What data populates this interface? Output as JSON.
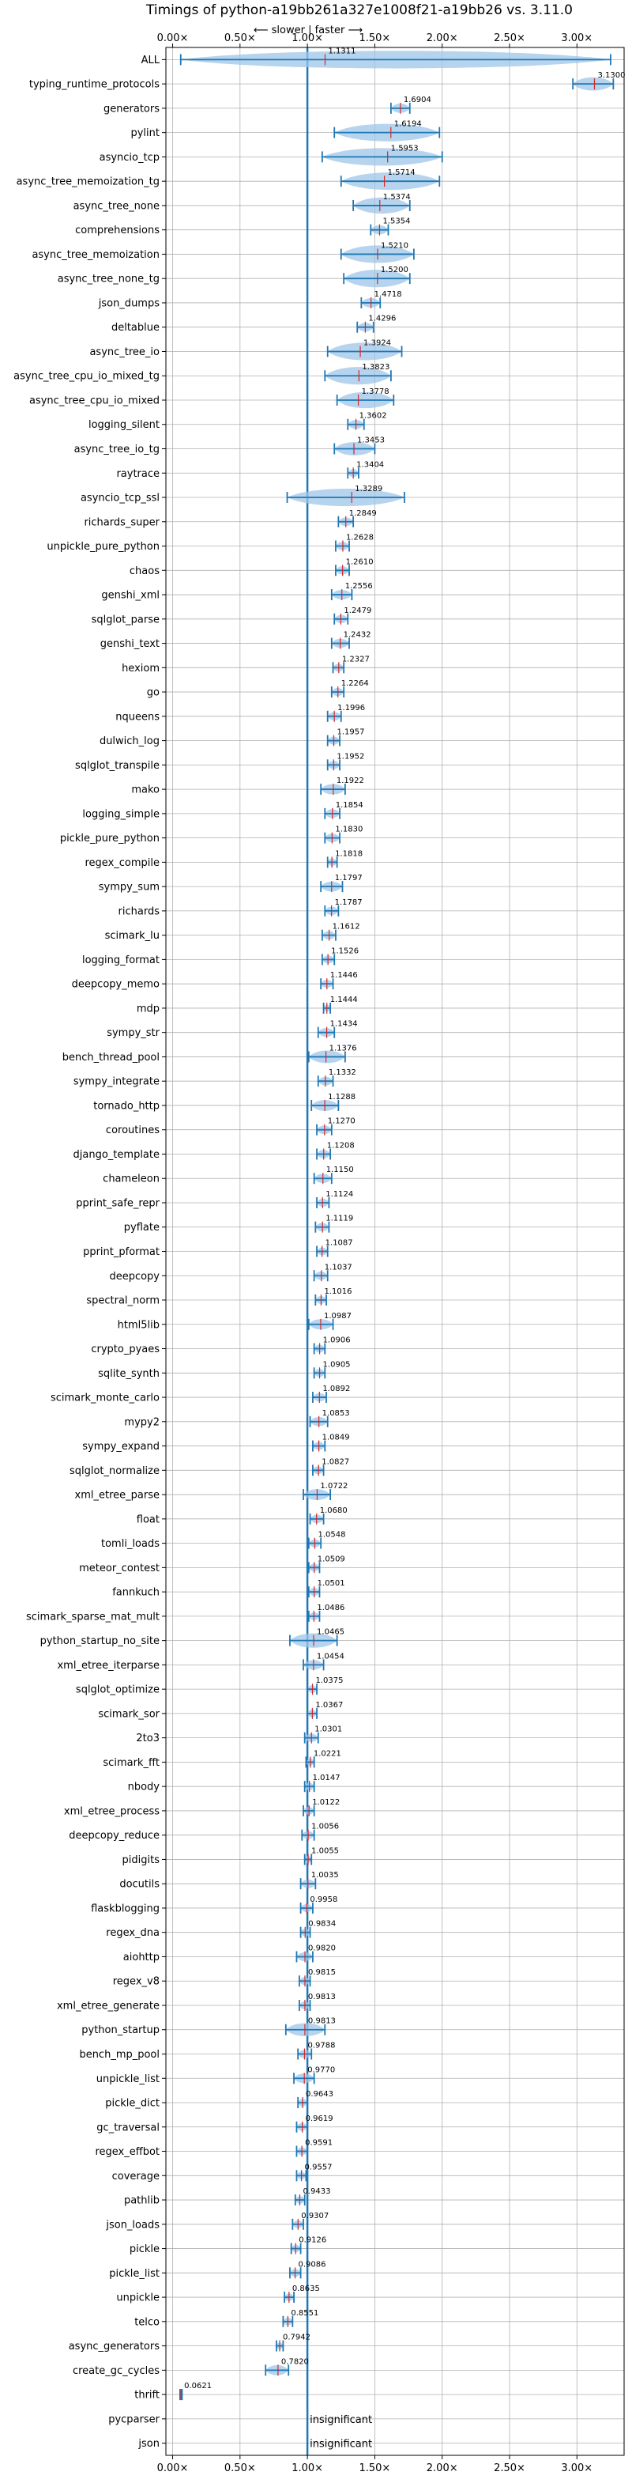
{
  "chart_data": {
    "type": "violin",
    "title": "Timings of python-a19bb261a327e1008f21-a19bb26 vs. 3.11.0",
    "subtitle": "⟵ slower | faster ⟶",
    "x_ticks": [
      "0.00×",
      "0.50×",
      "1.00×",
      "1.50×",
      "2.00×",
      "2.50×",
      "3.00×"
    ],
    "xlim": [
      -0.05,
      3.35
    ],
    "reference_line": 1.0,
    "grid": true,
    "colors": {
      "violin": "#9ec6e8",
      "line": "#1f77b4",
      "mean": "#d62728",
      "ref": "#1f77b4"
    },
    "insignificant_label": "insignificant",
    "benchmarks": [
      {
        "name": "ALL",
        "value": 1.1311,
        "label": "1.1311",
        "lo": 0.06,
        "hi": 3.25
      },
      {
        "name": "typing_runtime_protocols",
        "value": 3.13,
        "label": "3.1300",
        "lo": 2.97,
        "hi": 3.27
      },
      {
        "name": "generators",
        "value": 1.6904,
        "label": "1.6904",
        "lo": 1.62,
        "hi": 1.76
      },
      {
        "name": "pylint",
        "value": 1.6194,
        "label": "1.6194",
        "lo": 1.2,
        "hi": 1.98
      },
      {
        "name": "asyncio_tcp",
        "value": 1.5953,
        "label": "1.5953",
        "lo": 1.11,
        "hi": 2.0
      },
      {
        "name": "async_tree_memoization_tg",
        "value": 1.5714,
        "label": "1.5714",
        "lo": 1.25,
        "hi": 1.98
      },
      {
        "name": "async_tree_none",
        "value": 1.5374,
        "label": "1.5374",
        "lo": 1.34,
        "hi": 1.76
      },
      {
        "name": "comprehensions",
        "value": 1.5354,
        "label": "1.5354",
        "lo": 1.47,
        "hi": 1.6
      },
      {
        "name": "async_tree_memoization",
        "value": 1.521,
        "label": "1.5210",
        "lo": 1.25,
        "hi": 1.79
      },
      {
        "name": "async_tree_none_tg",
        "value": 1.52,
        "label": "1.5200",
        "lo": 1.27,
        "hi": 1.76
      },
      {
        "name": "json_dumps",
        "value": 1.4718,
        "label": "1.4718",
        "lo": 1.4,
        "hi": 1.54
      },
      {
        "name": "deltablue",
        "value": 1.4296,
        "label": "1.4296",
        "lo": 1.37,
        "hi": 1.49
      },
      {
        "name": "async_tree_io",
        "value": 1.3924,
        "label": "1.3924",
        "lo": 1.15,
        "hi": 1.7
      },
      {
        "name": "async_tree_cpu_io_mixed_tg",
        "value": 1.3823,
        "label": "1.3823",
        "lo": 1.13,
        "hi": 1.62
      },
      {
        "name": "async_tree_cpu_io_mixed",
        "value": 1.3778,
        "label": "1.3778",
        "lo": 1.22,
        "hi": 1.64
      },
      {
        "name": "logging_silent",
        "value": 1.3602,
        "label": "1.3602",
        "lo": 1.3,
        "hi": 1.42
      },
      {
        "name": "async_tree_io_tg",
        "value": 1.3453,
        "label": "1.3453",
        "lo": 1.2,
        "hi": 1.5
      },
      {
        "name": "raytrace",
        "value": 1.3404,
        "label": "1.3404",
        "lo": 1.3,
        "hi": 1.38
      },
      {
        "name": "asyncio_tcp_ssl",
        "value": 1.3289,
        "label": "1.3289",
        "lo": 0.85,
        "hi": 1.72
      },
      {
        "name": "richards_super",
        "value": 1.2849,
        "label": "1.2849",
        "lo": 1.23,
        "hi": 1.34
      },
      {
        "name": "unpickle_pure_python",
        "value": 1.2628,
        "label": "1.2628",
        "lo": 1.21,
        "hi": 1.31
      },
      {
        "name": "chaos",
        "value": 1.261,
        "label": "1.2610",
        "lo": 1.21,
        "hi": 1.31
      },
      {
        "name": "genshi_xml",
        "value": 1.2556,
        "label": "1.2556",
        "lo": 1.18,
        "hi": 1.33
      },
      {
        "name": "sqlglot_parse",
        "value": 1.2479,
        "label": "1.2479",
        "lo": 1.2,
        "hi": 1.3
      },
      {
        "name": "genshi_text",
        "value": 1.2432,
        "label": "1.2432",
        "lo": 1.18,
        "hi": 1.31
      },
      {
        "name": "hexiom",
        "value": 1.2327,
        "label": "1.2327",
        "lo": 1.19,
        "hi": 1.27
      },
      {
        "name": "go",
        "value": 1.2264,
        "label": "1.2264",
        "lo": 1.18,
        "hi": 1.27
      },
      {
        "name": "nqueens",
        "value": 1.1996,
        "label": "1.1996",
        "lo": 1.15,
        "hi": 1.25
      },
      {
        "name": "dulwich_log",
        "value": 1.1957,
        "label": "1.1957",
        "lo": 1.15,
        "hi": 1.24
      },
      {
        "name": "sqlglot_transpile",
        "value": 1.1952,
        "label": "1.1952",
        "lo": 1.15,
        "hi": 1.24
      },
      {
        "name": "mako",
        "value": 1.1922,
        "label": "1.1922",
        "lo": 1.1,
        "hi": 1.28
      },
      {
        "name": "logging_simple",
        "value": 1.1854,
        "label": "1.1854",
        "lo": 1.13,
        "hi": 1.24
      },
      {
        "name": "pickle_pure_python",
        "value": 1.183,
        "label": "1.1830",
        "lo": 1.13,
        "hi": 1.24
      },
      {
        "name": "regex_compile",
        "value": 1.1818,
        "label": "1.1818",
        "lo": 1.15,
        "hi": 1.22
      },
      {
        "name": "sympy_sum",
        "value": 1.1797,
        "label": "1.1797",
        "lo": 1.1,
        "hi": 1.26
      },
      {
        "name": "richards",
        "value": 1.1787,
        "label": "1.1787",
        "lo": 1.13,
        "hi": 1.23
      },
      {
        "name": "scimark_lu",
        "value": 1.1612,
        "label": "1.1612",
        "lo": 1.11,
        "hi": 1.21
      },
      {
        "name": "logging_format",
        "value": 1.1526,
        "label": "1.1526",
        "lo": 1.11,
        "hi": 1.2
      },
      {
        "name": "deepcopy_memo",
        "value": 1.1446,
        "label": "1.1446",
        "lo": 1.1,
        "hi": 1.19
      },
      {
        "name": "mdp",
        "value": 1.1444,
        "label": "1.1444",
        "lo": 1.12,
        "hi": 1.17
      },
      {
        "name": "sympy_str",
        "value": 1.1434,
        "label": "1.1434",
        "lo": 1.08,
        "hi": 1.2
      },
      {
        "name": "bench_thread_pool",
        "value": 1.1376,
        "label": "1.1376",
        "lo": 1.01,
        "hi": 1.28
      },
      {
        "name": "sympy_integrate",
        "value": 1.1332,
        "label": "1.1332",
        "lo": 1.08,
        "hi": 1.19
      },
      {
        "name": "tornado_http",
        "value": 1.1288,
        "label": "1.1288",
        "lo": 1.03,
        "hi": 1.23
      },
      {
        "name": "coroutines",
        "value": 1.127,
        "label": "1.1270",
        "lo": 1.07,
        "hi": 1.18
      },
      {
        "name": "django_template",
        "value": 1.1208,
        "label": "1.1208",
        "lo": 1.07,
        "hi": 1.17
      },
      {
        "name": "chameleon",
        "value": 1.115,
        "label": "1.1150",
        "lo": 1.05,
        "hi": 1.18
      },
      {
        "name": "pprint_safe_repr",
        "value": 1.1124,
        "label": "1.1124",
        "lo": 1.07,
        "hi": 1.16
      },
      {
        "name": "pyflate",
        "value": 1.1119,
        "label": "1.1119",
        "lo": 1.06,
        "hi": 1.16
      },
      {
        "name": "pprint_pformat",
        "value": 1.1087,
        "label": "1.1087",
        "lo": 1.07,
        "hi": 1.15
      },
      {
        "name": "deepcopy",
        "value": 1.1037,
        "label": "1.1037",
        "lo": 1.05,
        "hi": 1.15
      },
      {
        "name": "spectral_norm",
        "value": 1.1016,
        "label": "1.1016",
        "lo": 1.06,
        "hi": 1.14
      },
      {
        "name": "html5lib",
        "value": 1.0987,
        "label": "1.0987",
        "lo": 1.01,
        "hi": 1.19
      },
      {
        "name": "crypto_pyaes",
        "value": 1.0906,
        "label": "1.0906",
        "lo": 1.05,
        "hi": 1.13
      },
      {
        "name": "sqlite_synth",
        "value": 1.0905,
        "label": "1.0905",
        "lo": 1.05,
        "hi": 1.13
      },
      {
        "name": "scimark_monte_carlo",
        "value": 1.0892,
        "label": "1.0892",
        "lo": 1.04,
        "hi": 1.14
      },
      {
        "name": "mypy2",
        "value": 1.0853,
        "label": "1.0853",
        "lo": 1.02,
        "hi": 1.15
      },
      {
        "name": "sympy_expand",
        "value": 1.0849,
        "label": "1.0849",
        "lo": 1.04,
        "hi": 1.13
      },
      {
        "name": "sqlglot_normalize",
        "value": 1.0827,
        "label": "1.0827",
        "lo": 1.04,
        "hi": 1.12
      },
      {
        "name": "xml_etree_parse",
        "value": 1.0722,
        "label": "1.0722",
        "lo": 0.97,
        "hi": 1.17
      },
      {
        "name": "float",
        "value": 1.068,
        "label": "1.0680",
        "lo": 1.02,
        "hi": 1.12
      },
      {
        "name": "tomli_loads",
        "value": 1.0548,
        "label": "1.0548",
        "lo": 1.01,
        "hi": 1.1
      },
      {
        "name": "meteor_contest",
        "value": 1.0509,
        "label": "1.0509",
        "lo": 1.01,
        "hi": 1.09
      },
      {
        "name": "fannkuch",
        "value": 1.0501,
        "label": "1.0501",
        "lo": 1.01,
        "hi": 1.09
      },
      {
        "name": "scimark_sparse_mat_mult",
        "value": 1.0486,
        "label": "1.0486",
        "lo": 1.01,
        "hi": 1.09
      },
      {
        "name": "python_startup_no_site",
        "value": 1.0465,
        "label": "1.0465",
        "lo": 0.87,
        "hi": 1.22
      },
      {
        "name": "xml_etree_iterparse",
        "value": 1.0454,
        "label": "1.0454",
        "lo": 0.97,
        "hi": 1.12
      },
      {
        "name": "sqlglot_optimize",
        "value": 1.0375,
        "label": "1.0375",
        "lo": 1.0,
        "hi": 1.07
      },
      {
        "name": "scimark_sor",
        "value": 1.0367,
        "label": "1.0367",
        "lo": 1.0,
        "hi": 1.07
      },
      {
        "name": "2to3",
        "value": 1.0301,
        "label": "1.0301",
        "lo": 0.98,
        "hi": 1.08
      },
      {
        "name": "scimark_fft",
        "value": 1.0221,
        "label": "1.0221",
        "lo": 0.99,
        "hi": 1.05
      },
      {
        "name": "nbody",
        "value": 1.0147,
        "label": "1.0147",
        "lo": 0.98,
        "hi": 1.05
      },
      {
        "name": "xml_etree_process",
        "value": 1.0122,
        "label": "1.0122",
        "lo": 0.97,
        "hi": 1.05
      },
      {
        "name": "deepcopy_reduce",
        "value": 1.0056,
        "label": "1.0056",
        "lo": 0.96,
        "hi": 1.05
      },
      {
        "name": "pidigits",
        "value": 1.0055,
        "label": "1.0055",
        "lo": 0.98,
        "hi": 1.03
      },
      {
        "name": "docutils",
        "value": 1.0035,
        "label": "1.0035",
        "lo": 0.95,
        "hi": 1.06
      },
      {
        "name": "flaskblogging",
        "value": 0.9958,
        "label": "0.9958",
        "lo": 0.95,
        "hi": 1.04
      },
      {
        "name": "regex_dna",
        "value": 0.9834,
        "label": "0.9834",
        "lo": 0.95,
        "hi": 1.02
      },
      {
        "name": "aiohttp",
        "value": 0.982,
        "label": "0.9820",
        "lo": 0.92,
        "hi": 1.04
      },
      {
        "name": "regex_v8",
        "value": 0.9815,
        "label": "0.9815",
        "lo": 0.94,
        "hi": 1.02
      },
      {
        "name": "xml_etree_generate",
        "value": 0.9813,
        "label": "0.9813",
        "lo": 0.94,
        "hi": 1.02
      },
      {
        "name": "python_startup",
        "value": 0.9813,
        "label": "0.9813",
        "lo": 0.84,
        "hi": 1.13
      },
      {
        "name": "bench_mp_pool",
        "value": 0.9788,
        "label": "0.9788",
        "lo": 0.93,
        "hi": 1.03
      },
      {
        "name": "unpickle_list",
        "value": 0.977,
        "label": "0.9770",
        "lo": 0.9,
        "hi": 1.05
      },
      {
        "name": "pickle_dict",
        "value": 0.9643,
        "label": "0.9643",
        "lo": 0.93,
        "hi": 1.0
      },
      {
        "name": "gc_traversal",
        "value": 0.9619,
        "label": "0.9619",
        "lo": 0.92,
        "hi": 1.0
      },
      {
        "name": "regex_effbot",
        "value": 0.9591,
        "label": "0.9591",
        "lo": 0.92,
        "hi": 1.0
      },
      {
        "name": "coverage",
        "value": 0.9557,
        "label": "0.9557",
        "lo": 0.92,
        "hi": 0.99
      },
      {
        "name": "pathlib",
        "value": 0.9433,
        "label": "0.9433",
        "lo": 0.91,
        "hi": 0.98
      },
      {
        "name": "json_loads",
        "value": 0.9307,
        "label": "0.9307",
        "lo": 0.89,
        "hi": 0.97
      },
      {
        "name": "pickle",
        "value": 0.9126,
        "label": "0.9126",
        "lo": 0.88,
        "hi": 0.95
      },
      {
        "name": "pickle_list",
        "value": 0.9086,
        "label": "0.9086",
        "lo": 0.87,
        "hi": 0.95
      },
      {
        "name": "unpickle",
        "value": 0.8635,
        "label": "0.8635",
        "lo": 0.83,
        "hi": 0.9
      },
      {
        "name": "telco",
        "value": 0.8551,
        "label": "0.8551",
        "lo": 0.82,
        "hi": 0.89
      },
      {
        "name": "async_generators",
        "value": 0.7942,
        "label": "0.7942",
        "lo": 0.77,
        "hi": 0.82
      },
      {
        "name": "create_gc_cycles",
        "value": 0.782,
        "label": "0.7820",
        "lo": 0.69,
        "hi": 0.86
      },
      {
        "name": "thrift",
        "value": 0.0621,
        "label": "0.0621",
        "lo": 0.055,
        "hi": 0.07
      },
      {
        "name": "pycparser",
        "value": null,
        "label": "insignificant",
        "insignificant": true
      },
      {
        "name": "json",
        "value": null,
        "label": "insignificant",
        "insignificant": true
      }
    ]
  }
}
